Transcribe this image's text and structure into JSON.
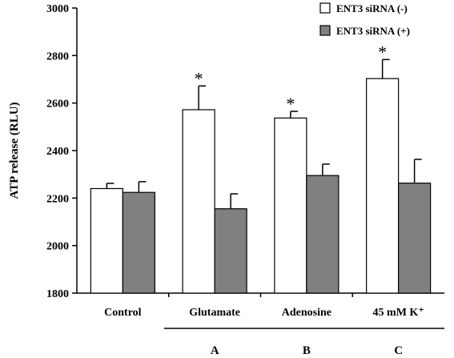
{
  "chart_data": {
    "type": "bar",
    "ylabel": "ATP release (RLU)",
    "xlabel": "",
    "ylim": [
      1800,
      3000
    ],
    "yticks": [
      1800,
      2000,
      2200,
      2400,
      2600,
      2800,
      3000
    ],
    "categories": [
      "Control",
      "Glutamate",
      "Adenosine",
      "45 mM K⁺"
    ],
    "group_labels": [
      {
        "label": "A",
        "category_index": 1
      },
      {
        "label": "B",
        "category_index": 2
      },
      {
        "label": "C",
        "category_index": 3
      }
    ],
    "series": [
      {
        "name": "ENT3 siRNA (-)",
        "color": "#ffffff",
        "values": [
          2240,
          2572,
          2537,
          2703
        ],
        "errors": [
          22,
          100,
          28,
          80
        ],
        "significance": [
          "",
          "*",
          "*",
          "*"
        ]
      },
      {
        "name": "ENT3 siRNA (+)",
        "color": "#808080",
        "values": [
          2224,
          2155,
          2295,
          2263
        ],
        "errors": [
          45,
          63,
          48,
          100
        ],
        "significance": [
          "",
          "",
          "",
          ""
        ]
      }
    ],
    "legend_position": "top-right",
    "grid": false
  }
}
